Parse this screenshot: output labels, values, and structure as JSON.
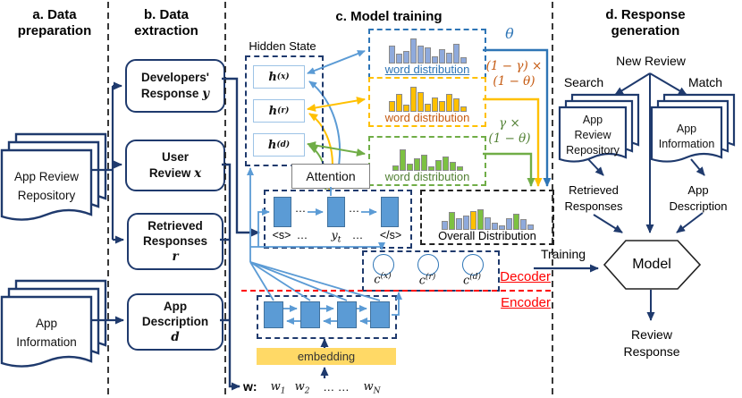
{
  "palette": {
    "navy": "#1f3a6d",
    "cell_blue": "#5b9bd5",
    "accent_blue": "#2e75b6",
    "bar_blue": "#8faadc",
    "yellow": "#ffc000",
    "orange_text": "#c55a11",
    "green": "#70ad47",
    "bar_green": "#7dc142",
    "red": "#ff0000",
    "embed_yellow": "#ffd966"
  },
  "section_a": {
    "title": [
      "a. Data",
      "preparation"
    ],
    "stack_app_review": [
      "App Review",
      "Repository"
    ],
    "stack_app_info": [
      "App",
      "Information"
    ]
  },
  "section_b": {
    "title": [
      "b. Data",
      "extraction"
    ],
    "dev_response": {
      "l1": "Developers'",
      "l2": "Response",
      "var": "y"
    },
    "user_review": {
      "l1": "User",
      "l2": "Review",
      "var": "x"
    },
    "retrieved": {
      "l1": "Retrieved",
      "l2": "Responses",
      "var": "r"
    },
    "app_desc": {
      "l1": "App",
      "l2": "Description",
      "var": "d"
    }
  },
  "section_c": {
    "title": "c. Model training",
    "hidden_state": {
      "label": "Hidden State",
      "h_x": {
        "base": "h",
        "sup": "(x)"
      },
      "h_r": {
        "base": "h",
        "sup": "(r)"
      },
      "h_d": {
        "base": "h",
        "sup": "(d)"
      }
    },
    "attention": "Attention",
    "word_dist_x": {
      "label": "word distribution"
    },
    "word_dist_r": {
      "label": "word distribution"
    },
    "word_dist_d": {
      "label": "word distribution"
    },
    "weights": {
      "theta": "θ",
      "w1a": "(1 − γ) ×",
      "w1b": "(1 − θ)",
      "w2a": "γ ×",
      "w2b": "(1 − θ)"
    },
    "overall": {
      "label": "Overall Distribution"
    },
    "decoder_tokens": {
      "bos": "<s>",
      "dots1": "…",
      "yt_base": "y",
      "yt_sub": "t",
      "dots2": "…",
      "eos": "</s>"
    },
    "context": {
      "c_x": {
        "base": "c",
        "sup": "(x)"
      },
      "c_r": {
        "base": "c",
        "sup": "(r)"
      },
      "c_d": {
        "base": "c",
        "sup": "(d)"
      }
    },
    "decoder_label": "Decoder",
    "encoder_label": "Encoder",
    "embedding": "embedding",
    "w_row": {
      "prefix": "w:",
      "w1": {
        "base": "w",
        "sub": "1"
      },
      "w2": {
        "base": "w",
        "sub": "2"
      },
      "dots": "… …",
      "wn": {
        "base": "w",
        "sub": "N"
      }
    }
  },
  "section_d": {
    "title": [
      "d. Response",
      "generation"
    ],
    "new_review": "New Review",
    "search": "Search",
    "match": "Match",
    "stack_repo": [
      "App",
      "Review",
      "Repository"
    ],
    "stack_info": [
      "App",
      "Information"
    ],
    "retrieved": [
      "Retrieved",
      "Responses"
    ],
    "app_desc": [
      "App",
      "Description"
    ],
    "model": "Model",
    "review_response": [
      "Review",
      "Response"
    ],
    "training": "Training"
  },
  "chart_data": [
    {
      "name": "word-distribution-x",
      "type": "bar",
      "color": "#8faadc",
      "values": [
        20,
        11,
        14,
        28,
        20,
        18,
        8,
        16,
        12,
        22,
        7
      ]
    },
    {
      "name": "word-distribution-r",
      "type": "bar",
      "color": "#ffc000",
      "values": [
        12,
        20,
        8,
        28,
        22,
        9,
        16,
        12,
        20,
        15,
        6
      ]
    },
    {
      "name": "word-distribution-d",
      "type": "bar",
      "color": "#7dc142",
      "values": [
        6,
        24,
        8,
        14,
        18,
        5,
        12,
        16,
        10,
        5
      ]
    },
    {
      "name": "overall-distribution",
      "type": "bar",
      "values": [
        10,
        20,
        13,
        16,
        21,
        23,
        14,
        8,
        5,
        13,
        18,
        12,
        6
      ],
      "colors": [
        "#8faadc",
        "#7dc142",
        "#8faadc",
        "#8faadc",
        "#ffc000",
        "#7dc142",
        "#8faadc",
        "#8faadc",
        "#8faadc",
        "#8faadc",
        "#7dc142",
        "#8faadc",
        "#8faadc"
      ]
    }
  ]
}
